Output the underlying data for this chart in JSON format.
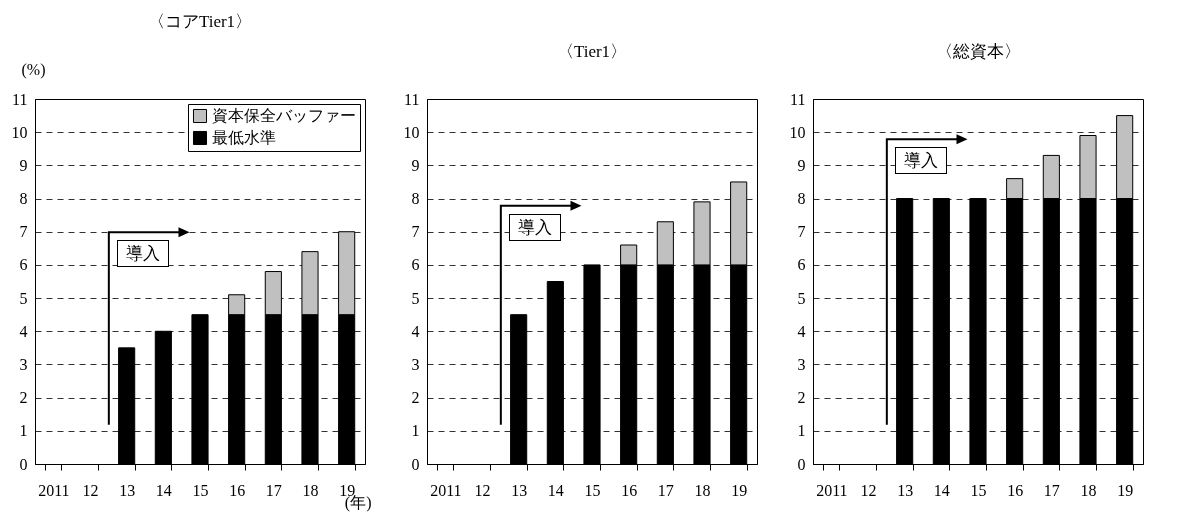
{
  "chart_data": [
    {
      "type": "bar",
      "title": "〈コアTier1〉",
      "ylabel": "(%)",
      "xlabel": "(年)",
      "categories": [
        "2011",
        "12",
        "13",
        "14",
        "15",
        "16",
        "17",
        "18",
        "19"
      ],
      "stacked": true,
      "legend": "top right",
      "grid": "y",
      "ylim": [
        0,
        11
      ],
      "yticks": [
        0,
        1,
        2,
        3,
        4,
        5,
        6,
        7,
        8,
        9,
        10,
        11
      ],
      "annotations": [
        "導入"
      ],
      "series": [
        {
          "name": "最低水準",
          "color": "#000000",
          "values": [
            null,
            null,
            3.5,
            4,
            4.5,
            4.5,
            4.5,
            4.5,
            4.5
          ]
        },
        {
          "name": "資本保全バッファー",
          "color": "#c0c0c0",
          "values": [
            null,
            null,
            null,
            null,
            null,
            0.6,
            1.3,
            1.9,
            2.5
          ]
        }
      ]
    },
    {
      "type": "bar",
      "title": "〈Tier1〉",
      "categories": [
        "2011",
        "12",
        "13",
        "14",
        "15",
        "16",
        "17",
        "18",
        "19"
      ],
      "stacked": true,
      "legend": false,
      "grid": "y",
      "ylim": [
        0,
        11
      ],
      "yticks": [
        0,
        1,
        2,
        3,
        4,
        5,
        6,
        7,
        8,
        9,
        10,
        11
      ],
      "annotations": [
        "導入"
      ],
      "series": [
        {
          "color": "#000000",
          "values": [
            null,
            null,
            4.5,
            5.5,
            6,
            6,
            6,
            6,
            6
          ]
        },
        {
          "color": "#c0c0c0",
          "values": [
            null,
            null,
            null,
            null,
            null,
            0.6,
            1.3,
            1.9,
            2.5
          ]
        }
      ]
    },
    {
      "type": "bar",
      "title": "〈総資本〉",
      "categories": [
        "2011",
        "12",
        "13",
        "14",
        "15",
        "16",
        "17",
        "18",
        "19"
      ],
      "stacked": true,
      "legend": false,
      "grid": "y",
      "ylim": [
        0,
        11
      ],
      "yticks": [
        0,
        1,
        2,
        3,
        4,
        5,
        6,
        7,
        8,
        9,
        10,
        11
      ],
      "annotations": [
        "導入"
      ],
      "series": [
        {
          "color": "#000000",
          "values": [
            null,
            null,
            8,
            8,
            8,
            8,
            8,
            8,
            8
          ]
        },
        {
          "color": "#c0c0c0",
          "values": [
            null,
            null,
            null,
            null,
            null,
            0.6,
            1.3,
            1.9,
            2.5
          ]
        }
      ]
    }
  ]
}
